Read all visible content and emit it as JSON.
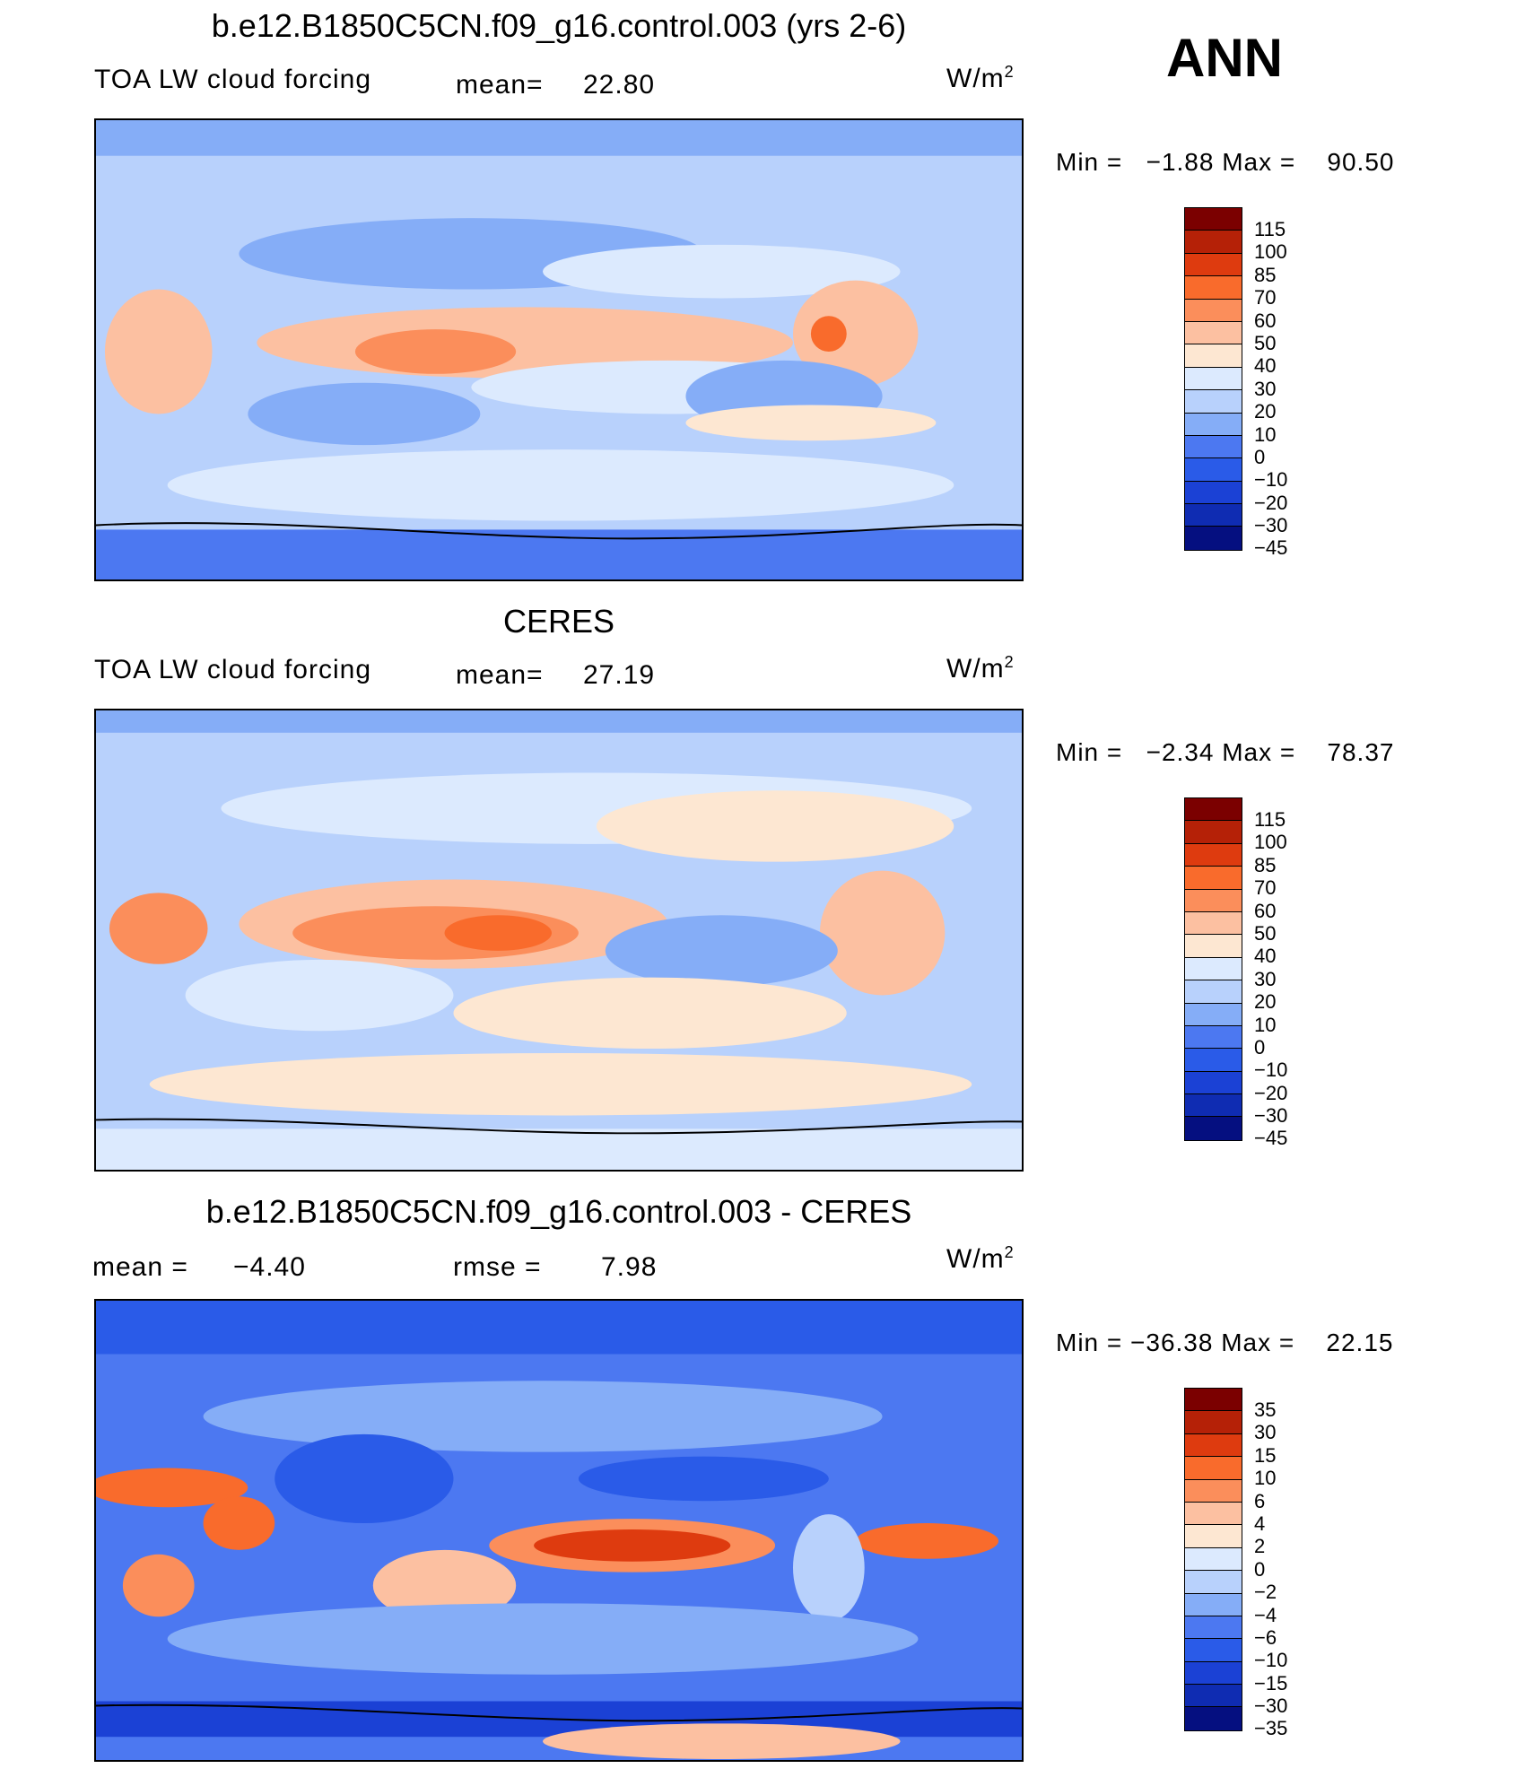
{
  "season": "ANN",
  "colors": {
    "model_scale": [
      "#7b0000",
      "#b52107",
      "#de3b0f",
      "#f96b2c",
      "#fb8e5b",
      "#fcc0a1",
      "#fde7d2",
      "#dceafe",
      "#b8d1fc",
      "#85adf7",
      "#4c78f1",
      "#2a5be8",
      "#1b41d5",
      "#0f2cb2",
      "#050f80"
    ],
    "diff_scale": [
      "#7b0000",
      "#b52107",
      "#de3b0f",
      "#f96b2c",
      "#fb8e5b",
      "#fcc0a1",
      "#fde7d2",
      "#dceafe",
      "#b8d1fc",
      "#85adf7",
      "#4c78f1",
      "#2a5be8",
      "#1b41d5",
      "#0f2cb2",
      "#050f80"
    ]
  },
  "panels": [
    {
      "title": "b.e12.B1850C5CN.f09_g16.control.003 (yrs 2-6)",
      "left_label": "TOA LW cloud forcing",
      "stat_label": "mean=",
      "stat_value": "22.80",
      "units": "W/m",
      "units_sup": "2",
      "min_label": "Min =",
      "min_value": "−1.88",
      "max_label": "Max =",
      "max_value": "90.50",
      "levels": [
        "115",
        "100",
        "85",
        "70",
        "60",
        "50",
        "40",
        "30",
        "20",
        "10",
        "0",
        "−10",
        "−20",
        "−30",
        "−45"
      ]
    },
    {
      "title": "CERES",
      "left_label": "TOA LW cloud forcing",
      "stat_label": "mean=",
      "stat_value": "27.19",
      "units": "W/m",
      "units_sup": "2",
      "min_label": "Min =",
      "min_value": "−2.34",
      "max_label": "Max =",
      "max_value": "78.37",
      "levels": [
        "115",
        "100",
        "85",
        "70",
        "60",
        "50",
        "40",
        "30",
        "20",
        "10",
        "0",
        "−10",
        "−20",
        "−30",
        "−45"
      ]
    },
    {
      "title": "b.e12.B1850C5CN.f09_g16.control.003 - CERES",
      "left_label": "mean =",
      "left_value": "−4.40",
      "stat_label": "rmse =",
      "stat_value": "7.98",
      "units": "W/m",
      "units_sup": "2",
      "min_label": "Min =",
      "min_value": "−36.38",
      "max_label": "Max =",
      "max_value": "22.15",
      "levels": [
        "35",
        "30",
        "15",
        "10",
        "6",
        "4",
        "2",
        "0",
        "−2",
        "−4",
        "−6",
        "−10",
        "−15",
        "−30",
        "−35"
      ]
    }
  ],
  "chart_data": [
    {
      "type": "heatmap",
      "title": "b.e12.B1850C5CN.f09_g16.control.003 (yrs 2-6)",
      "variable": "TOA LW cloud forcing",
      "units": "W/m2",
      "mean": 22.8,
      "min": -1.88,
      "max": 90.5,
      "contour_levels": [
        -45,
        -30,
        -20,
        -10,
        0,
        10,
        20,
        30,
        40,
        50,
        60,
        70,
        85,
        100,
        115
      ]
    },
    {
      "type": "heatmap",
      "title": "CERES",
      "variable": "TOA LW cloud forcing",
      "units": "W/m2",
      "mean": 27.19,
      "min": -2.34,
      "max": 78.37,
      "contour_levels": [
        -45,
        -30,
        -20,
        -10,
        0,
        10,
        20,
        30,
        40,
        50,
        60,
        70,
        85,
        100,
        115
      ]
    },
    {
      "type": "heatmap",
      "title": "b.e12.B1850C5CN.f09_g16.control.003 - CERES",
      "units": "W/m2",
      "mean": -4.4,
      "rmse": 7.98,
      "min": -36.38,
      "max": 22.15,
      "contour_levels": [
        -35,
        -30,
        -15,
        -10,
        -6,
        -4,
        -2,
        0,
        2,
        4,
        6,
        10,
        15,
        30,
        35
      ]
    }
  ]
}
